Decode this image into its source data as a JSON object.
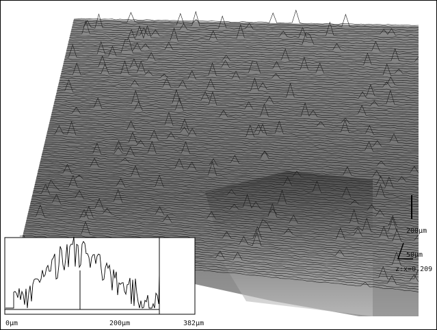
{
  "inset": {
    "x_labels": [
      "0µm",
      "200µm",
      "382µm"
    ]
  },
  "scale_bars": {
    "vertical": "200µm",
    "depth": "50µm",
    "aspect": "z:x=0.209"
  }
}
